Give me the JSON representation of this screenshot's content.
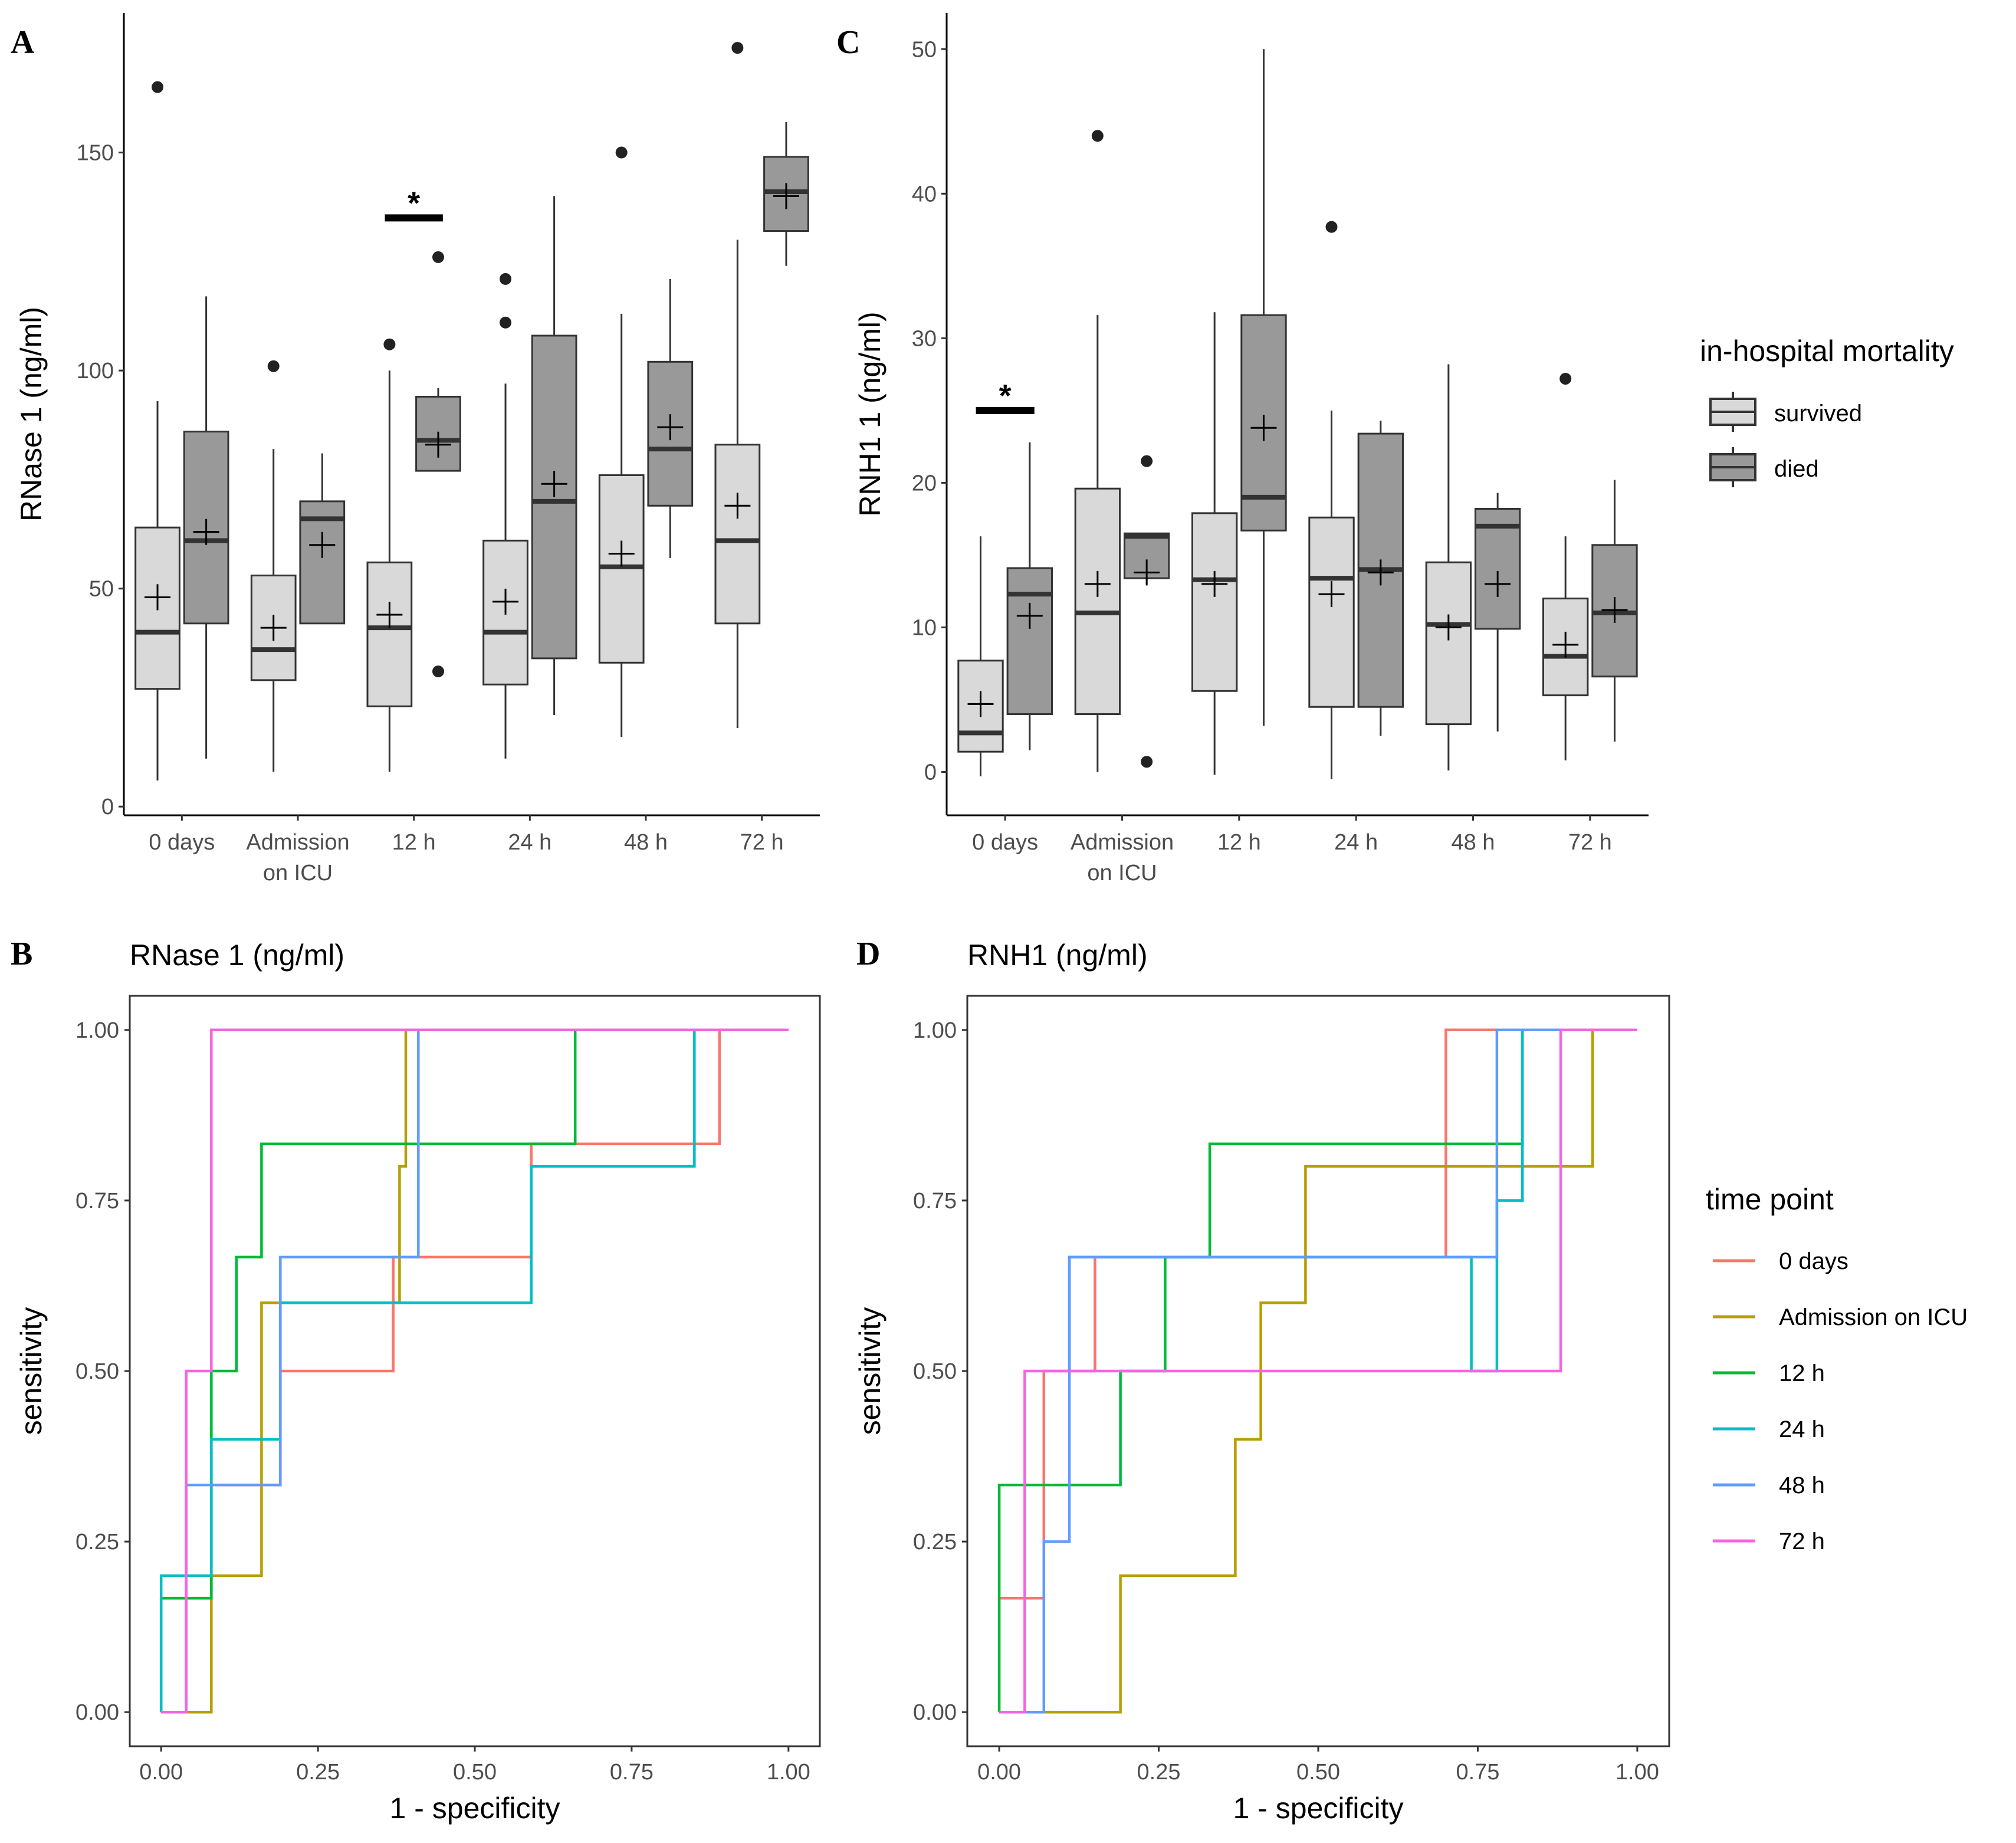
{
  "panels": {
    "A": "A",
    "B": "B",
    "C": "C",
    "D": "D"
  },
  "boxplot_legend": {
    "title": "in-hospital mortality",
    "groups": [
      {
        "key": "survived",
        "label": "survived",
        "color": "#d9d9d9"
      },
      {
        "key": "died",
        "label": "died",
        "color": "#999999"
      }
    ]
  },
  "roc_legend": {
    "title": "time point",
    "items": [
      {
        "key": "t0",
        "label": "0 days",
        "color": "#F8766D"
      },
      {
        "key": "adm",
        "label": "Admission on ICU",
        "color": "#B79F00"
      },
      {
        "key": "h12",
        "label": "12 h",
        "color": "#00BA38"
      },
      {
        "key": "h24",
        "label": "24 h",
        "color": "#00BFC4"
      },
      {
        "key": "h48",
        "label": "48 h",
        "color": "#619CFF"
      },
      {
        "key": "h72",
        "label": "72 h",
        "color": "#F564E3"
      }
    ]
  },
  "chart_data": [
    {
      "id": "A",
      "type": "boxplot",
      "title": "",
      "xlabel": "",
      "ylabel": "RNase 1 (ng/ml)",
      "ylim": [
        -2,
        182
      ],
      "yticks": [
        0,
        50,
        100,
        150
      ],
      "categories": [
        {
          "line1": "0 days",
          "line2": ""
        },
        {
          "line1": "Admission",
          "line2": "on ICU"
        },
        {
          "line1": "12 h",
          "line2": ""
        },
        {
          "line1": "24 h",
          "line2": ""
        },
        {
          "line1": "48 h",
          "line2": ""
        },
        {
          "line1": "72 h",
          "line2": ""
        }
      ],
      "significance": [
        {
          "category": 2,
          "y": 135,
          "star_y": 140,
          "label": "*"
        }
      ],
      "boxes": [
        {
          "category": 0,
          "group": "survived",
          "whisker_low": 6,
          "q1": 27,
          "median": 40,
          "q3": 64,
          "whisker_high": 93,
          "mean": 48,
          "outliers": [
            165
          ]
        },
        {
          "category": 0,
          "group": "died",
          "whisker_low": 11,
          "q1": 42,
          "median": 61,
          "q3": 86,
          "whisker_high": 117,
          "mean": 63,
          "outliers": []
        },
        {
          "category": 1,
          "group": "survived",
          "whisker_low": 8,
          "q1": 29,
          "median": 36,
          "q3": 53,
          "whisker_high": 82,
          "mean": 41,
          "outliers": [
            101
          ]
        },
        {
          "category": 1,
          "group": "died",
          "whisker_low": 42,
          "q1": 42,
          "median": 66,
          "q3": 70,
          "whisker_high": 81,
          "mean": 60,
          "outliers": []
        },
        {
          "category": 2,
          "group": "survived",
          "whisker_low": 8,
          "q1": 23,
          "median": 41,
          "q3": 56,
          "whisker_high": 100,
          "mean": 44,
          "outliers": [
            106
          ]
        },
        {
          "category": 2,
          "group": "died",
          "whisker_low": 77,
          "q1": 77,
          "median": 84,
          "q3": 94,
          "whisker_high": 96,
          "mean": 83,
          "outliers": [
            126,
            31
          ]
        },
        {
          "category": 3,
          "group": "survived",
          "whisker_low": 11,
          "q1": 28,
          "median": 40,
          "q3": 61,
          "whisker_high": 97,
          "mean": 47,
          "outliers": [
            121,
            111
          ]
        },
        {
          "category": 3,
          "group": "died",
          "whisker_low": 21,
          "q1": 34,
          "median": 70,
          "q3": 108,
          "whisker_high": 140,
          "mean": 74,
          "outliers": []
        },
        {
          "category": 4,
          "group": "survived",
          "whisker_low": 16,
          "q1": 33,
          "median": 55,
          "q3": 76,
          "whisker_high": 113,
          "mean": 58,
          "outliers": [
            150
          ]
        },
        {
          "category": 4,
          "group": "died",
          "whisker_low": 57,
          "q1": 69,
          "median": 82,
          "q3": 102,
          "whisker_high": 121,
          "mean": 87,
          "outliers": []
        },
        {
          "category": 5,
          "group": "survived",
          "whisker_low": 18,
          "q1": 42,
          "median": 61,
          "q3": 83,
          "whisker_high": 130,
          "mean": 69,
          "outliers": [
            174
          ]
        },
        {
          "category": 5,
          "group": "died",
          "whisker_low": 124,
          "q1": 132,
          "median": 141,
          "q3": 149,
          "whisker_high": 157,
          "mean": 140,
          "outliers": []
        }
      ]
    },
    {
      "id": "C",
      "type": "boxplot",
      "title": "",
      "xlabel": "",
      "ylabel": "RNH1 1 (ng/ml)",
      "ylim": [
        -3,
        52.5
      ],
      "yticks": [
        0,
        10,
        20,
        30,
        40,
        50
      ],
      "categories": [
        {
          "line1": "0 days",
          "line2": ""
        },
        {
          "line1": "Admission",
          "line2": "on ICU"
        },
        {
          "line1": "12 h",
          "line2": ""
        },
        {
          "line1": "24 h",
          "line2": ""
        },
        {
          "line1": "48 h",
          "line2": ""
        },
        {
          "line1": "72 h",
          "line2": ""
        }
      ],
      "significance": [
        {
          "category": 0,
          "y": 25,
          "star_y": 26.5,
          "label": "*"
        }
      ],
      "boxes": [
        {
          "category": 0,
          "group": "survived",
          "whisker_low": -0.3,
          "q1": 1.4,
          "median": 2.7,
          "q3": 7.7,
          "whisker_high": 16.3,
          "mean": 4.7,
          "outliers": []
        },
        {
          "category": 0,
          "group": "died",
          "whisker_low": 1.5,
          "q1": 4.0,
          "median": 12.3,
          "q3": 14.1,
          "whisker_high": 22.8,
          "mean": 10.8,
          "outliers": []
        },
        {
          "category": 1,
          "group": "survived",
          "whisker_low": 0.0,
          "q1": 4.0,
          "median": 11.0,
          "q3": 19.6,
          "whisker_high": 31.6,
          "mean": 13.0,
          "outliers": [
            44.0
          ]
        },
        {
          "category": 1,
          "group": "died",
          "whisker_low": 13.0,
          "q1": 13.4,
          "median": 16.3,
          "q3": 16.5,
          "whisker_high": 16.5,
          "mean": 13.8,
          "outliers": [
            21.5,
            0.7
          ]
        },
        {
          "category": 2,
          "group": "survived",
          "whisker_low": -0.2,
          "q1": 5.6,
          "median": 13.3,
          "q3": 17.9,
          "whisker_high": 31.8,
          "mean": 13.0,
          "outliers": []
        },
        {
          "category": 2,
          "group": "died",
          "whisker_low": 3.2,
          "q1": 16.7,
          "median": 19.0,
          "q3": 31.6,
          "whisker_high": 50.0,
          "mean": 23.8,
          "outliers": []
        },
        {
          "category": 3,
          "group": "survived",
          "whisker_low": -0.5,
          "q1": 4.5,
          "median": 13.4,
          "q3": 17.6,
          "whisker_high": 25.0,
          "mean": 12.3,
          "outliers": [
            37.7
          ]
        },
        {
          "category": 3,
          "group": "died",
          "whisker_low": 2.5,
          "q1": 4.5,
          "median": 14.0,
          "q3": 23.4,
          "whisker_high": 24.3,
          "mean": 13.8,
          "outliers": []
        },
        {
          "category": 4,
          "group": "survived",
          "whisker_low": 0.1,
          "q1": 3.3,
          "median": 10.2,
          "q3": 14.5,
          "whisker_high": 28.2,
          "mean": 10.0,
          "outliers": []
        },
        {
          "category": 4,
          "group": "died",
          "whisker_low": 2.8,
          "q1": 9.9,
          "median": 17.0,
          "q3": 18.2,
          "whisker_high": 19.3,
          "mean": 13.0,
          "outliers": []
        },
        {
          "category": 5,
          "group": "survived",
          "whisker_low": 0.8,
          "q1": 5.3,
          "median": 8.0,
          "q3": 12.0,
          "whisker_high": 16.3,
          "mean": 8.8,
          "outliers": [
            27.2
          ]
        },
        {
          "category": 5,
          "group": "died",
          "whisker_low": 2.1,
          "q1": 6.6,
          "median": 11.0,
          "q3": 15.7,
          "whisker_high": 20.2,
          "mean": 11.2,
          "outliers": []
        }
      ]
    },
    {
      "id": "B",
      "type": "line",
      "title": "RNase 1 (ng/ml)",
      "xlabel": "1 - specificity",
      "ylabel": "sensitivity",
      "xlim": [
        -0.05,
        1.05
      ],
      "ylim": [
        -0.05,
        1.05
      ],
      "xticks": [
        "0.00",
        "0.25",
        "0.50",
        "0.75",
        "1.00"
      ],
      "yticks": [
        "0.00",
        "0.25",
        "0.50",
        "0.75",
        "1.00"
      ],
      "series": [
        {
          "key": "t0",
          "name": "0 days",
          "x": [
            0,
            0,
            0.08,
            0.08,
            0.19,
            0.19,
            0.37,
            0.37,
            0.59,
            0.59,
            0.89,
            0.89,
            1
          ],
          "y": [
            0,
            0.167,
            0.167,
            0.333,
            0.333,
            0.5,
            0.5,
            0.667,
            0.667,
            0.833,
            0.833,
            1,
            1
          ]
        },
        {
          "key": "adm",
          "name": "Admission on ICU",
          "x": [
            0,
            0.08,
            0.08,
            0.16,
            0.16,
            0.38,
            0.38,
            0.39,
            0.39,
            1
          ],
          "y": [
            0,
            0,
            0.2,
            0.2,
            0.6,
            0.6,
            0.8,
            0.8,
            1,
            1
          ]
        },
        {
          "key": "h12",
          "name": "12 h",
          "x": [
            0,
            0,
            0.08,
            0.08,
            0.12,
            0.12,
            0.16,
            0.16,
            0.66,
            0.66,
            1
          ],
          "y": [
            0,
            0.167,
            0.167,
            0.5,
            0.5,
            0.667,
            0.667,
            0.833,
            0.833,
            1,
            1
          ]
        },
        {
          "key": "h24",
          "name": "24 h",
          "x": [
            0,
            0,
            0.08,
            0.08,
            0.19,
            0.19,
            0.59,
            0.59,
            0.85,
            0.85,
            1
          ],
          "y": [
            0,
            0.2,
            0.2,
            0.4,
            0.4,
            0.6,
            0.6,
            0.8,
            0.8,
            1,
            1
          ]
        },
        {
          "key": "h48",
          "name": "48 h",
          "x": [
            0,
            0.04,
            0.04,
            0.19,
            0.19,
            0.41,
            0.41,
            1
          ],
          "y": [
            0,
            0,
            0.333,
            0.333,
            0.667,
            0.667,
            1,
            1
          ]
        },
        {
          "key": "h72",
          "name": "72 h",
          "x": [
            0,
            0.04,
            0.04,
            0.08,
            0.08,
            1
          ],
          "y": [
            0,
            0,
            0.5,
            0.5,
            1,
            1
          ]
        }
      ]
    },
    {
      "id": "D",
      "type": "line",
      "title": "RNH1 (ng/ml)",
      "xlabel": "1 - specificity",
      "ylabel": "sensitivity",
      "xlim": [
        -0.05,
        1.05
      ],
      "ylim": [
        -0.05,
        1.05
      ],
      "xticks": [
        "0.00",
        "0.25",
        "0.50",
        "0.75",
        "1.00"
      ],
      "yticks": [
        "0.00",
        "0.25",
        "0.50",
        "0.75",
        "1.00"
      ],
      "series": [
        {
          "key": "t0",
          "name": "0 days",
          "x": [
            0,
            0.07,
            0.07,
            0.15,
            0.15,
            0.7,
            0.7,
            1
          ],
          "y": [
            0.167,
            0.167,
            0.5,
            0.5,
            0.667,
            0.667,
            1,
            1
          ]
        },
        {
          "key": "adm",
          "name": "Admission on ICU",
          "x": [
            0,
            0.19,
            0.19,
            0.37,
            0.37,
            0.41,
            0.41,
            0.48,
            0.48,
            0.93,
            0.93,
            1
          ],
          "y": [
            0,
            0,
            0.2,
            0.2,
            0.4,
            0.4,
            0.6,
            0.6,
            0.8,
            0.8,
            1,
            1
          ]
        },
        {
          "key": "h12",
          "name": "12 h",
          "x": [
            0,
            0,
            0.19,
            0.19,
            0.26,
            0.26,
            0.33,
            0.33,
            0.82,
            0.82,
            1
          ],
          "y": [
            0,
            0.333,
            0.333,
            0.5,
            0.5,
            0.667,
            0.667,
            0.833,
            0.833,
            1,
            1
          ]
        },
        {
          "key": "h24",
          "name": "24 h",
          "x": [
            0.11,
            0.11,
            0.74,
            0.74,
            0.78,
            0.78,
            0.82,
            0.82,
            1
          ],
          "y": [
            0.5,
            0.667,
            0.667,
            0.5,
            0.5,
            0.75,
            0.75,
            1,
            1
          ]
        },
        {
          "key": "h48",
          "name": "48 h",
          "x": [
            0,
            0.07,
            0.07,
            0.11,
            0.11,
            0.78,
            0.78,
            1
          ],
          "y": [
            0,
            0,
            0.25,
            0.25,
            0.667,
            0.667,
            1,
            1
          ]
        },
        {
          "key": "h72",
          "name": "72 h",
          "x": [
            0,
            0.04,
            0.04,
            0.88,
            0.88,
            1
          ],
          "y": [
            0,
            0,
            0.5,
            0.5,
            1,
            1
          ]
        }
      ]
    }
  ]
}
